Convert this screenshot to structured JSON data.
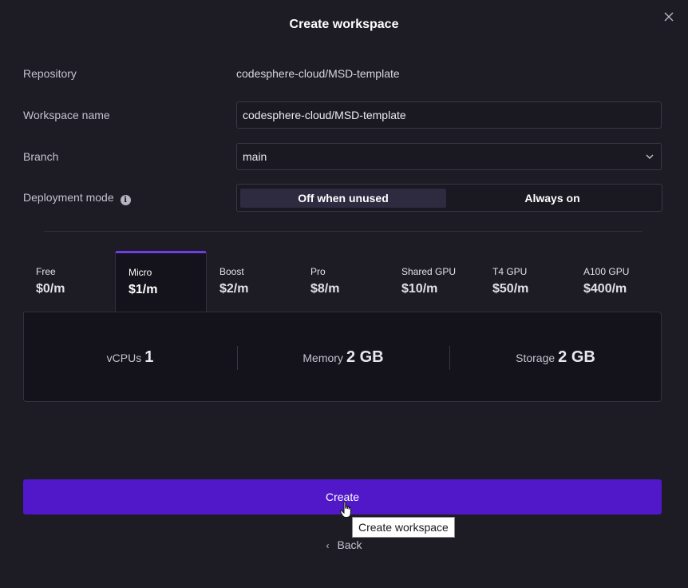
{
  "dialog": {
    "title": "Create workspace",
    "close_icon": "close-icon"
  },
  "form": {
    "repository": {
      "label": "Repository",
      "value": "codesphere-cloud/MSD-template"
    },
    "workspace_name": {
      "label": "Workspace name",
      "value": "codesphere-cloud/MSD-template"
    },
    "branch": {
      "label": "Branch",
      "value": "main"
    },
    "deployment_mode": {
      "label": "Deployment mode",
      "options": [
        "Off when unused",
        "Always on"
      ],
      "selected": "Off when unused"
    }
  },
  "plans": [
    {
      "name": "Free",
      "price": "$0/m"
    },
    {
      "name": "Micro",
      "price": "$1/m"
    },
    {
      "name": "Boost",
      "price": "$2/m"
    },
    {
      "name": "Pro",
      "price": "$8/m"
    },
    {
      "name": "Shared GPU",
      "price": "$10/m"
    },
    {
      "name": "T4 GPU",
      "price": "$50/m"
    },
    {
      "name": "A100 GPU",
      "price": "$400/m"
    }
  ],
  "selected_plan": "Micro",
  "specs": [
    {
      "label": "vCPUs",
      "value": "1"
    },
    {
      "label": "Memory",
      "value": "2 GB"
    },
    {
      "label": "Storage",
      "value": "2 GB"
    }
  ],
  "actions": {
    "create_label": "Create",
    "tooltip": "Create workspace",
    "back_label": "Back"
  },
  "colors": {
    "accent": "#6d3ee8",
    "primary_button": "#5018c9",
    "background": "#1d1b24"
  }
}
